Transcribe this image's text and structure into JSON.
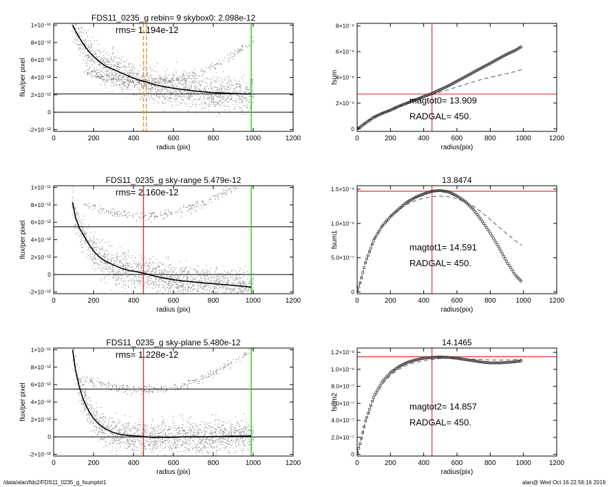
{
  "footer": {
    "path": "/data/alan/fds2/FDS11_0235_g_fsumplot1",
    "stamp": "alan@  Wed Oct 16 22:56:16 2019"
  },
  "chart_data": [
    {
      "type": "scatter",
      "title": "FDS11_0235_g rebin= 9    skybox0:  2.098e-12",
      "annotation": "rms= 1.194e-12",
      "xlabel": "radius (pix)",
      "ylabel": "flux/per pixel",
      "xlim": [
        0,
        1200
      ],
      "ylim": [
        -2.2e-12,
        1.02e-11
      ],
      "xticks": [
        "0",
        "200",
        "400",
        "600",
        "800",
        "1000",
        "1200"
      ],
      "yticks": [
        {
          "v": 1e-11,
          "label": "1×10⁻¹¹"
        },
        {
          "v": 8e-12,
          "label": "8×10⁻¹²"
        },
        {
          "v": 6e-12,
          "label": "6×10⁻¹²"
        },
        {
          "v": 4e-12,
          "label": "4×10⁻¹²"
        },
        {
          "v": 2e-12,
          "label": "2×10⁻¹²"
        },
        {
          "v": 0,
          "label": "0"
        },
        {
          "v": -2e-12,
          "label": "-2×10⁻¹²"
        }
      ],
      "hlines": [
        {
          "y": 2.098e-12,
          "color": "#000000"
        },
        {
          "y": 0,
          "color": "#000000"
        }
      ],
      "vlines": [
        {
          "x": 990,
          "color": "#33cc33",
          "style": "solid"
        },
        {
          "x": 450,
          "color": "#e8963c",
          "style": "dashed"
        },
        {
          "x": 465,
          "color": "#e8963c",
          "style": "dashed"
        }
      ],
      "profile": {
        "x": [
          95,
          110,
          130,
          150,
          175,
          200,
          230,
          260,
          300,
          340,
          380,
          420,
          460,
          500,
          550,
          600,
          650,
          700,
          750,
          800,
          850,
          900,
          950,
          990
        ],
        "y": [
          1e-11,
          9.3e-12,
          8.5e-12,
          7.8e-12,
          7e-12,
          6.4e-12,
          5.8e-12,
          5.3e-12,
          4.9e-12,
          4.5e-12,
          4.1e-12,
          3.75e-12,
          3.5e-12,
          3.2e-12,
          2.95e-12,
          2.75e-12,
          2.6e-12,
          2.45e-12,
          2.35e-12,
          2.25e-12,
          2.2e-12,
          2.15e-12,
          2.1e-12,
          2.1e-12
        ]
      },
      "scatter_offset": 0,
      "arc": true,
      "colors": {
        "points": "#9a9a9a",
        "profile": "#000000"
      }
    },
    {
      "type": "line",
      "title": "",
      "xlabel": "radius(pix)",
      "ylabel": "fsum",
      "xlim": [
        0,
        1200
      ],
      "ylim": [
        -2e-07,
        8.2e-06
      ],
      "xticks": [
        "0",
        "200",
        "400",
        "600",
        "800",
        "1000",
        "1200"
      ],
      "yticks": [
        {
          "v": 0,
          "label": "0"
        },
        {
          "v": 2e-06,
          "label": "2×10⁻⁶"
        },
        {
          "v": 4e-06,
          "label": "4×10⁻⁶"
        },
        {
          "v": 6e-06,
          "label": "6×10⁻⁶"
        },
        {
          "v": 8e-06,
          "label": "8×10⁻⁶"
        }
      ],
      "series": [
        {
          "x": [
            0,
            20,
            50,
            100,
            150,
            200,
            250,
            300,
            350,
            400,
            450,
            500,
            550,
            600,
            650,
            700,
            750,
            800,
            850,
            900,
            950,
            990
          ],
          "y": [
            0,
            1.5e-07,
            4.5e-07,
            9e-07,
            1.2e-06,
            1.45e-06,
            1.75e-06,
            2e-06,
            2.25e-06,
            2.5e-06,
            2.75e-06,
            3.05e-06,
            3.35e-06,
            3.7e-06,
            4.05e-06,
            4.4e-06,
            4.75e-06,
            5.1e-06,
            5.45e-06,
            5.8e-06,
            6.1e-06,
            6.4e-06
          ],
          "style": "markers"
        },
        {
          "x": [
            0,
            20,
            50,
            100,
            150,
            200,
            250,
            300,
            350,
            400,
            450,
            500,
            550,
            600,
            650,
            700,
            750,
            800,
            850,
            900,
            950,
            990
          ],
          "y": [
            0,
            1.5e-07,
            4.5e-07,
            9e-07,
            1.2e-06,
            1.45e-06,
            1.75e-06,
            2e-06,
            2.25e-06,
            2.45e-06,
            2.65e-06,
            2.85e-06,
            3.05e-06,
            3.25e-06,
            3.45e-06,
            3.65e-06,
            3.85e-06,
            4e-06,
            4.15e-06,
            4.3e-06,
            4.45e-06,
            4.6e-06
          ],
          "style": "dashed"
        }
      ],
      "hline": 2.7e-06,
      "vline": 450,
      "annotations": [
        "magtot0=  13.909",
        "RADGAL=    450."
      ],
      "colors": {
        "cross": "#dd3333",
        "markers": "#333333",
        "dashed": "#333333"
      }
    },
    {
      "type": "scatter",
      "title": "FDS11_0235_g sky-range  5.479e-12",
      "annotation": "rms=  2.160e-12",
      "xlabel": "radius (pix)",
      "ylabel": "flux/per pixel",
      "xlim": [
        0,
        1200
      ],
      "ylim": [
        -2.2e-12,
        1.02e-11
      ],
      "xticks": [
        "0",
        "200",
        "400",
        "600",
        "800",
        "1000",
        "1200"
      ],
      "yticks": [
        {
          "v": 1e-11,
          "label": "1×10⁻¹¹"
        },
        {
          "v": 8e-12,
          "label": "8×10⁻¹²"
        },
        {
          "v": 6e-12,
          "label": "6×10⁻¹²"
        },
        {
          "v": 4e-12,
          "label": "4×10⁻¹²"
        },
        {
          "v": 2e-12,
          "label": "2×10⁻¹²"
        },
        {
          "v": 0,
          "label": "0"
        },
        {
          "v": -2e-12,
          "label": "-2×10⁻¹²"
        }
      ],
      "hlines": [
        {
          "y": 5.479e-12,
          "color": "#000000"
        },
        {
          "y": 0,
          "color": "#000000"
        }
      ],
      "vlines": [
        {
          "x": 990,
          "color": "#33cc33",
          "style": "solid"
        },
        {
          "x": 450,
          "color": "#dd3333",
          "style": "solid"
        }
      ],
      "profile": {
        "x": [
          95,
          110,
          130,
          150,
          175,
          200,
          230,
          260,
          300,
          340,
          380,
          420,
          460,
          500,
          550,
          600,
          650,
          700,
          750,
          800,
          850,
          900,
          950,
          990
        ],
        "y": [
          8.3e-12,
          6.5e-12,
          5.3e-12,
          4.5e-12,
          3.5e-12,
          2.7e-12,
          2e-12,
          1.5e-12,
          1.1e-12,
          7e-13,
          4.5e-13,
          3e-13,
          1e-13,
          -1.5e-13,
          -4e-13,
          -6e-13,
          -7.5e-13,
          -8.5e-13,
          -9.5e-13,
          -1.05e-12,
          -1.15e-12,
          -1.25e-12,
          -1.35e-12,
          -1.45e-12
        ]
      },
      "scatter_offset": 3.4e-12,
      "arc": true,
      "colors": {
        "points": "#9a9a9a",
        "profile": "#000000"
      }
    },
    {
      "type": "line",
      "title": "13.8474",
      "xlabel": "radius(pix)",
      "ylabel": "fsum1",
      "xlim": [
        0,
        1200
      ],
      "ylim": [
        -2.5e-08,
        1.55e-06
      ],
      "xticks": [
        "0",
        "200",
        "400",
        "600",
        "800",
        "1000",
        "1200"
      ],
      "yticks": [
        {
          "v": 0,
          "label": "0"
        },
        {
          "v": 5e-07,
          "label": "5.0×10⁻⁷"
        },
        {
          "v": 1e-06,
          "label": "1.0×10⁻⁶"
        },
        {
          "v": 1.5e-06,
          "label": "1.5×10⁻⁶"
        }
      ],
      "series": [
        {
          "x": [
            0,
            20,
            50,
            100,
            150,
            200,
            250,
            300,
            350,
            400,
            450,
            500,
            550,
            600,
            650,
            700,
            750,
            800,
            850,
            900,
            950,
            990
          ],
          "y": [
            0,
            1.5e-07,
            4.3e-07,
            7.6e-07,
            9.6e-07,
            1.1e-06,
            1.21e-06,
            1.31e-06,
            1.38e-06,
            1.43e-06,
            1.47e-06,
            1.48e-06,
            1.46e-06,
            1.4e-06,
            1.32e-06,
            1.2e-06,
            1.04e-06,
            8.6e-07,
            6.6e-07,
            4.4e-07,
            2.5e-07,
            1.5e-07
          ],
          "style": "markers"
        },
        {
          "x": [
            0,
            20,
            50,
            100,
            150,
            200,
            250,
            300,
            350,
            400,
            450,
            500,
            550,
            600,
            650,
            700,
            750,
            800,
            850,
            900,
            950,
            990
          ],
          "y": [
            0,
            1.5e-07,
            4.3e-07,
            7.6e-07,
            9.6e-07,
            1.1e-06,
            1.2e-06,
            1.28e-06,
            1.33e-06,
            1.37e-06,
            1.39e-06,
            1.4e-06,
            1.39e-06,
            1.36e-06,
            1.31e-06,
            1.25e-06,
            1.16e-06,
            1.06e-06,
            9.5e-07,
            8.5e-07,
            7.5e-07,
            6.8e-07
          ],
          "style": "dashed"
        }
      ],
      "hline": 1.47e-06,
      "vline": 450,
      "annotations": [
        "magtot1=  14.591",
        "RADGAL=    450."
      ],
      "colors": {
        "cross": "#dd3333",
        "markers": "#333333",
        "dashed": "#333333"
      }
    },
    {
      "type": "scatter",
      "title": "FDS11_0235_g sky-plane  5.480e-12",
      "annotation": "rms=  1.228e-12",
      "xlabel": "radius (pix)",
      "ylabel": "flux/per pixel",
      "xlim": [
        0,
        1200
      ],
      "ylim": [
        -2.2e-12,
        1.02e-11
      ],
      "xticks": [
        "0",
        "200",
        "400",
        "600",
        "800",
        "1000",
        "1200"
      ],
      "yticks": [
        {
          "v": 1e-11,
          "label": "1×10⁻¹¹"
        },
        {
          "v": 8e-12,
          "label": "8×10⁻¹²"
        },
        {
          "v": 6e-12,
          "label": "6×10⁻¹²"
        },
        {
          "v": 4e-12,
          "label": "4×10⁻¹²"
        },
        {
          "v": 2e-12,
          "label": "2×10⁻¹²"
        },
        {
          "v": 0,
          "label": "0"
        },
        {
          "v": -2e-12,
          "label": "-2×10⁻¹²"
        }
      ],
      "hlines": [
        {
          "y": 5.48e-12,
          "color": "#000000"
        },
        {
          "y": 0,
          "color": "#000000"
        }
      ],
      "vlines": [
        {
          "x": 990,
          "color": "#33cc33",
          "style": "solid"
        },
        {
          "x": 450,
          "color": "#dd3333",
          "style": "solid"
        }
      ],
      "profile": {
        "x": [
          95,
          110,
          130,
          150,
          175,
          200,
          230,
          260,
          300,
          340,
          380,
          420,
          460,
          500,
          550,
          600,
          650,
          700,
          750,
          800,
          850,
          900,
          950,
          990
        ],
        "y": [
          1e-11,
          7.6e-12,
          5.6e-12,
          4.2e-12,
          3e-12,
          2.1e-12,
          1.4e-12,
          9e-13,
          5e-13,
          2.5e-13,
          1.5e-13,
          1e-13,
          0,
          -5e-14,
          -5e-14,
          -5e-14,
          0,
          0,
          2e-14,
          3e-14,
          5e-14,
          8e-14,
          1e-13,
          1e-13
        ]
      },
      "scatter_offset": 2e-12,
      "arc": true,
      "colors": {
        "points": "#9a9a9a",
        "profile": "#000000"
      }
    },
    {
      "type": "line",
      "title": "14.1465",
      "xlabel": "radius(pix)",
      "ylabel": "fsum2",
      "xlim": [
        0,
        1200
      ],
      "ylim": [
        -2e-08,
        1.25e-06
      ],
      "xticks": [
        "0",
        "200",
        "400",
        "600",
        "800",
        "1000",
        "1200"
      ],
      "yticks": [
        {
          "v": 0,
          "label": "0"
        },
        {
          "v": 2e-07,
          "label": "2.0×10⁻⁷"
        },
        {
          "v": 4e-07,
          "label": "4.0×10⁻⁷"
        },
        {
          "v": 6e-07,
          "label": "6.0×10⁻⁷"
        },
        {
          "v": 8e-07,
          "label": "8.0×10⁻⁷"
        },
        {
          "v": 1e-06,
          "label": "1.0×10⁻⁶"
        },
        {
          "v": 1.2e-06,
          "label": "1.2×10⁻⁶"
        }
      ],
      "series": [
        {
          "x": [
            0,
            20,
            50,
            100,
            150,
            200,
            250,
            300,
            350,
            400,
            450,
            500,
            550,
            600,
            650,
            700,
            750,
            800,
            850,
            900,
            950,
            990
          ],
          "y": [
            0,
            1.4e-07,
            3.9e-07,
            6.8e-07,
            8.5e-07,
            9.6e-07,
            1.03e-06,
            1.08e-06,
            1.11e-06,
            1.13e-06,
            1.14e-06,
            1.145e-06,
            1.14e-06,
            1.13e-06,
            1.115e-06,
            1.1e-06,
            1.085e-06,
            1.075e-06,
            1.075e-06,
            1.08e-06,
            1.09e-06,
            1.1e-06
          ],
          "style": "markers"
        },
        {
          "x": [
            0,
            20,
            50,
            100,
            150,
            200,
            250,
            300,
            350,
            400,
            450,
            500,
            550,
            600,
            650,
            700,
            750,
            800,
            850,
            900,
            950,
            990
          ],
          "y": [
            0,
            1.4e-07,
            3.9e-07,
            6.6e-07,
            8.2e-07,
            9.3e-07,
            1e-06,
            1.05e-06,
            1.08e-06,
            1.1e-06,
            1.115e-06,
            1.125e-06,
            1.13e-06,
            1.13e-06,
            1.125e-06,
            1.12e-06,
            1.115e-06,
            1.11e-06,
            1.11e-06,
            1.11e-06,
            1.115e-06,
            1.12e-06
          ],
          "style": "dashed"
        }
      ],
      "hline": 1.148e-06,
      "vline": 450,
      "annotations": [
        "magtot2=  14.857",
        "RADGAL=    450."
      ],
      "colors": {
        "cross": "#dd3333",
        "markers": "#333333",
        "dashed": "#333333"
      }
    }
  ]
}
